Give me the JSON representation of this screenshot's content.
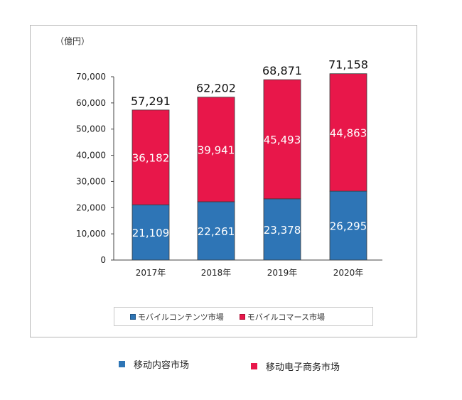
{
  "chart_data": {
    "type": "bar",
    "stacked": true,
    "unit_label": "（億円）",
    "categories": [
      "2017年",
      "2018年",
      "2019年",
      "2020年"
    ],
    "series": [
      {
        "name": "モバイルコンテンツ市場",
        "color": "#2e75b6",
        "values": [
          21109,
          22261,
          23378,
          26295
        ],
        "labels": [
          "21,109",
          "22,261",
          "23,378",
          "26,295"
        ]
      },
      {
        "name": "モバイルコマース市場",
        "color": "#e8174a",
        "values": [
          36182,
          39941,
          45493,
          44863
        ],
        "labels": [
          "36,182",
          "39,941",
          "45,493",
          "44,863"
        ]
      }
    ],
    "totals": [
      57291,
      62202,
      68871,
      71158
    ],
    "total_labels": [
      "57,291",
      "62,202",
      "68,871",
      "71,158"
    ],
    "y_ticks": [
      "0",
      "10,000",
      "20,000",
      "30,000",
      "40,000",
      "50,000",
      "60,000",
      "70,000"
    ],
    "ylim": [
      0,
      70000
    ],
    "grid": false,
    "legend": "bottom"
  },
  "outer_legend": [
    {
      "label": "移动内容市场",
      "color": "#2e75b6"
    },
    {
      "label": "移动电子商务市场",
      "color": "#e8174a"
    }
  ]
}
